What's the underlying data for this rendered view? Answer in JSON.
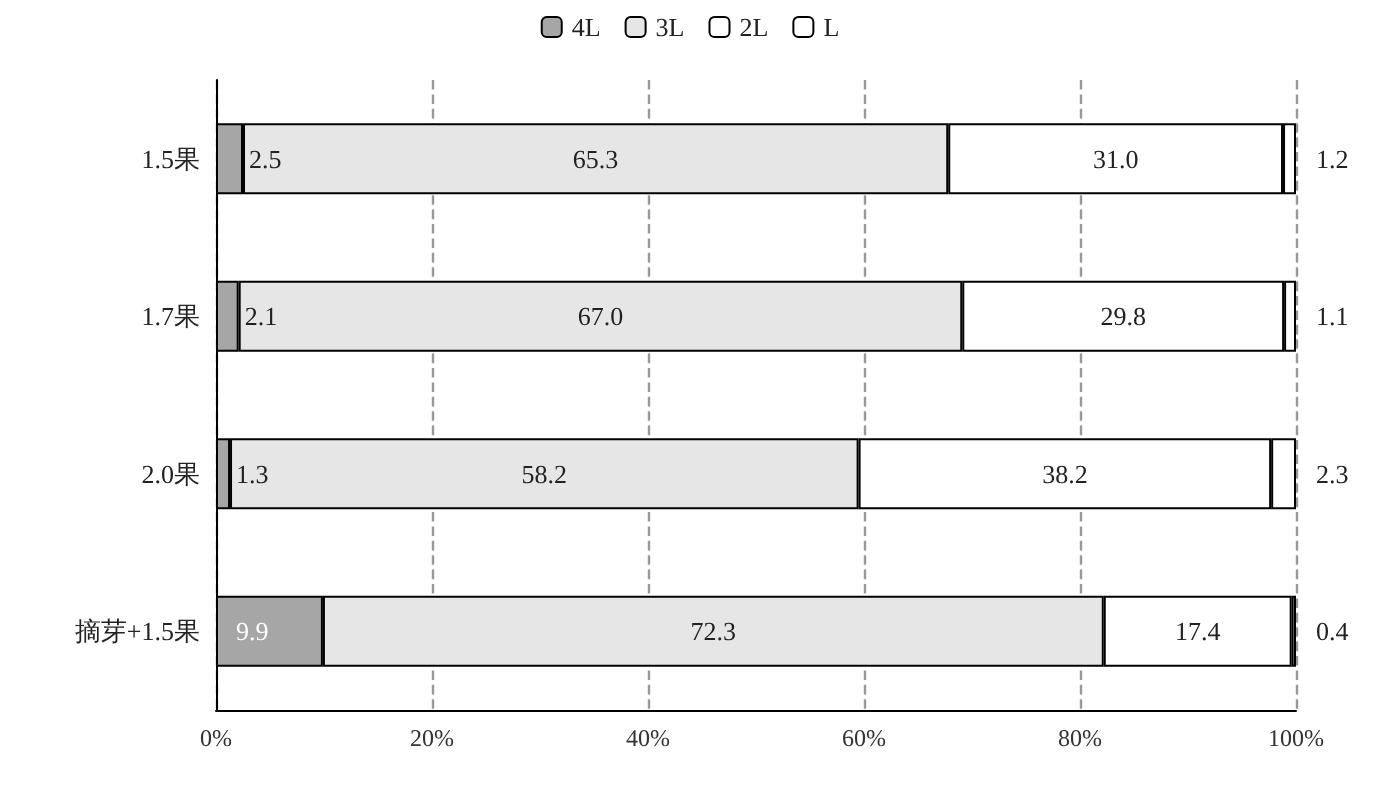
{
  "chart_data": {
    "type": "bar",
    "orientation": "horizontal",
    "stacked": true,
    "legend": "top",
    "grid": "x",
    "categories": [
      "1.5果",
      "1.7果",
      "2.0果",
      "摘芽+1.5果"
    ],
    "xlim": [
      0,
      100
    ],
    "xticks": [
      {
        "value": 0,
        "label": "0%"
      },
      {
        "value": 20,
        "label": "20%"
      },
      {
        "value": 40,
        "label": "40%"
      },
      {
        "value": 60,
        "label": "60%"
      },
      {
        "value": 80,
        "label": "80%"
      },
      {
        "value": 100,
        "label": "100%"
      }
    ],
    "series": [
      {
        "name": "4L",
        "color": "#a6a6a6",
        "values": [
          2.5,
          2.1,
          1.3,
          9.9
        ],
        "value_labels": [
          "2.5",
          "2.1",
          "1.3",
          "9.9"
        ]
      },
      {
        "name": "3L",
        "color": "#e6e6e6",
        "values": [
          65.3,
          67.0,
          58.2,
          72.3
        ],
        "value_labels": [
          "65.3",
          "67.0",
          "58.2",
          "72.3"
        ]
      },
      {
        "name": "2L",
        "color": "#ffffff",
        "values": [
          31.0,
          29.8,
          38.2,
          17.4
        ],
        "value_labels": [
          "31.0",
          "29.8",
          "38.2",
          "17.4"
        ]
      },
      {
        "name": "L",
        "color": "#ffffff",
        "values": [
          1.2,
          1.1,
          2.3,
          0.4
        ],
        "value_labels": [
          "1.2",
          "1.1",
          "2.3",
          "0.4"
        ]
      }
    ]
  }
}
